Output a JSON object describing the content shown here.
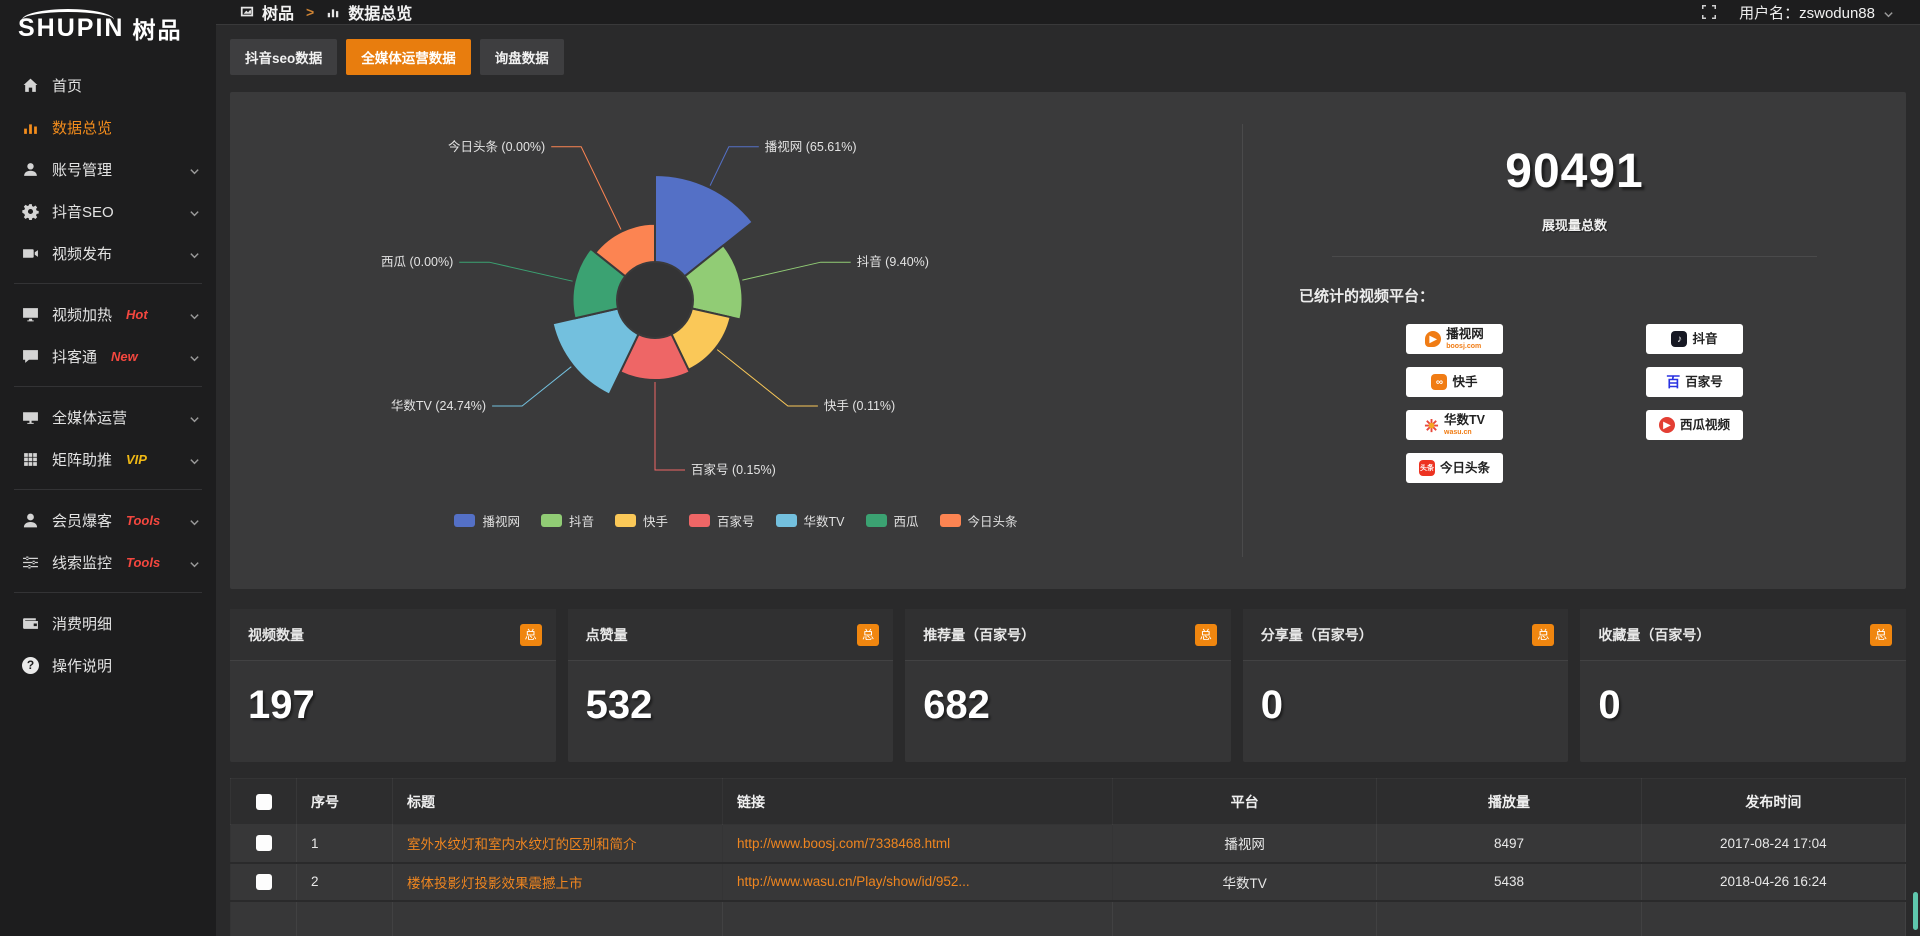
{
  "sidebar": {
    "logo": {
      "brand": "SHUPIN",
      "cn": "树品"
    },
    "items": [
      {
        "id": "home",
        "label": "首页",
        "icon": "home"
      },
      {
        "id": "dashboard",
        "label": "数据总览",
        "icon": "chart",
        "active": true
      },
      {
        "id": "account",
        "label": "账号管理",
        "icon": "user",
        "expandable": true
      },
      {
        "id": "douyin-seo",
        "label": "抖音SEO",
        "icon": "gear",
        "expandable": true
      },
      {
        "id": "video-publish",
        "label": "视频发布",
        "icon": "video",
        "expandable": true
      },
      {
        "divider": true
      },
      {
        "id": "video-heat",
        "label": "视频加热",
        "icon": "monitor",
        "badge": "Hot",
        "badge_style": "hot",
        "expandable": true
      },
      {
        "id": "douketong",
        "label": "抖客通",
        "icon": "chat",
        "badge": "New",
        "badge_style": "hot",
        "expandable": true
      },
      {
        "divider": true
      },
      {
        "id": "all-media",
        "label": "全媒体运营",
        "icon": "display",
        "expandable": true
      },
      {
        "id": "matrix-boost",
        "label": "矩阵助推",
        "icon": "grid",
        "badge": "VIP",
        "badge_style": "vip",
        "expandable": true
      },
      {
        "divider": true
      },
      {
        "id": "member-burst",
        "label": "会员爆客",
        "icon": "person",
        "badge": "Tools",
        "badge_style": "hot",
        "expandable": true
      },
      {
        "id": "clue-monitor",
        "label": "线索监控",
        "icon": "sliders",
        "badge": "Tools",
        "badge_style": "hot",
        "expandable": true
      },
      {
        "divider": true
      },
      {
        "id": "consume-detail",
        "label": "消费明细",
        "icon": "wallet"
      },
      {
        "id": "help",
        "label": "操作说明",
        "icon": "help"
      }
    ]
  },
  "topbar": {
    "breadcrumb": {
      "root": "树品",
      "separator": ">",
      "current": "数据总览"
    },
    "user_label": "用户名：zswodun88"
  },
  "tabs": [
    {
      "label": "抖音seo数据",
      "active": false
    },
    {
      "label": "全媒体运营数据",
      "active": true
    },
    {
      "label": "询盘数据",
      "active": false
    }
  ],
  "chart_data": {
    "type": "pie",
    "variant": "nightingale-rose",
    "legend_position": "bottom",
    "value_unit": "percent",
    "slices": [
      {
        "name": "播视网",
        "percent": 65.61,
        "color": "#5470c6",
        "r": 1.0
      },
      {
        "name": "抖音",
        "percent": 9.4,
        "color": "#91cc75",
        "r": 0.7
      },
      {
        "name": "快手",
        "percent": 0.11,
        "color": "#fac858",
        "r": 0.62
      },
      {
        "name": "百家号",
        "percent": 0.15,
        "color": "#ee6666",
        "r": 0.64
      },
      {
        "name": "华数TV",
        "percent": 24.74,
        "color": "#73c0de",
        "r": 0.84
      },
      {
        "name": "西瓜",
        "percent": 0,
        "color": "#3ba272",
        "r": 0.66
      },
      {
        "name": "今日头条",
        "percent": 0,
        "color": "#fc8452",
        "r": 0.61
      }
    ]
  },
  "summary": {
    "total_value": "90491",
    "total_label": "展现量总数",
    "platforms_label": "已统计的视频平台：",
    "platforms": [
      {
        "name": "播视网",
        "sub": "boosj.com",
        "style": "boosj"
      },
      {
        "name": "抖音",
        "style": "douyin"
      },
      {
        "name": "快手",
        "style": "kuaishou"
      },
      {
        "name": "百家号",
        "style": "baijiahao"
      },
      {
        "name": "华数TV",
        "sub": "wasu.cn",
        "style": "wasu"
      },
      {
        "name": "西瓜视频",
        "style": "xigua"
      },
      {
        "name": "今日头条",
        "style": "toutiao"
      }
    ]
  },
  "stat_cards": [
    {
      "title": "视频数量",
      "badge": "总",
      "value": "197"
    },
    {
      "title": "点赞量",
      "badge": "总",
      "value": "532"
    },
    {
      "title": "推荐量（百家号）",
      "badge": "总",
      "value": "682"
    },
    {
      "title": "分享量（百家号）",
      "badge": "总",
      "value": "0"
    },
    {
      "title": "收藏量（百家号）",
      "badge": "总",
      "value": "0"
    }
  ],
  "table": {
    "columns": [
      "序号",
      "标题",
      "链接",
      "平台",
      "播放量",
      "发布时间"
    ],
    "rows": [
      {
        "index": "1",
        "title": "室外水纹灯和室内水纹灯的区别和简介",
        "link": "http://www.boosj.com/7338468.html",
        "platform": "播视网",
        "plays": "8497",
        "time": "2017-08-24 17:04"
      },
      {
        "index": "2",
        "title": "楼体投影灯投影效果震撼上市",
        "link": "http://www.wasu.cn/Play/show/id/952...",
        "platform": "华数TV",
        "plays": "5438",
        "time": "2018-04-26 16:24"
      }
    ]
  }
}
